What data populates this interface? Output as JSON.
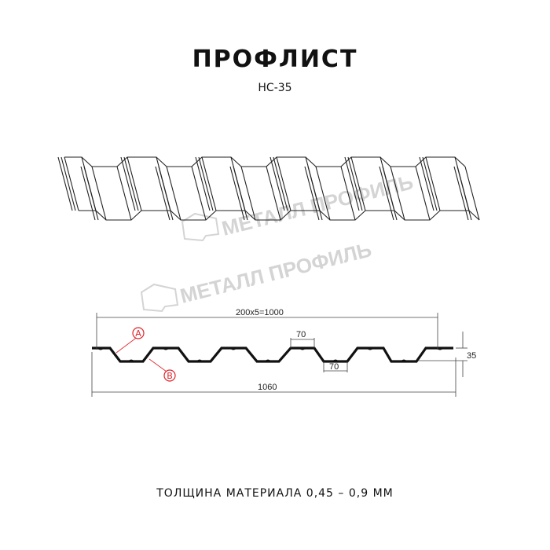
{
  "title": "ПРОФЛИСТ",
  "subtitle": "НС-35",
  "watermark": "МЕТАЛЛ ПРОФИЛЬ",
  "dimensions": {
    "pitch_total": "200х5=1000",
    "top_width": "70",
    "bottom_width": "70",
    "height": "35",
    "total_width": "1060"
  },
  "markers": {
    "a": "A",
    "b": "B",
    "color": "#e0242b"
  },
  "footer": "ТОЛЩИНА МАТЕРИАЛА 0,45 – 0,9 ММ"
}
